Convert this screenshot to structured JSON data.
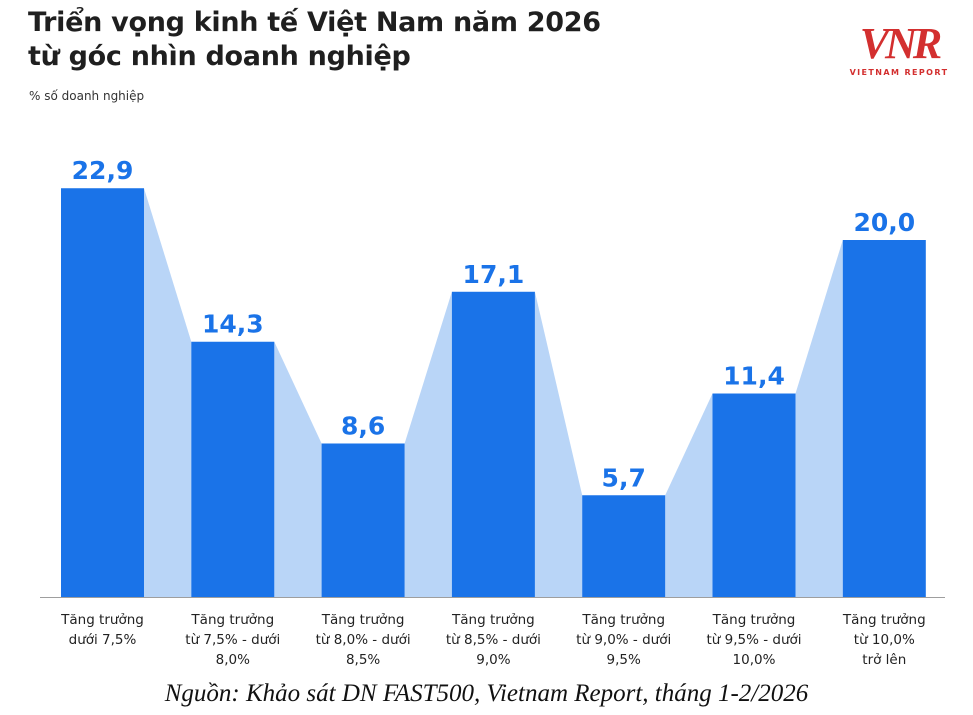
{
  "header": {
    "title_line1": "Triển vọng kinh tế Việt Nam năm 2026",
    "title_line2": "từ góc nhìn doanh nghiệp",
    "unit_label": "% số doanh nghiệp"
  },
  "logo": {
    "text": "VNR",
    "tagline": "VIETNAM REPORT",
    "color": "#d32f2f"
  },
  "chart_data": {
    "type": "bar",
    "title": "Triển vọng kinh tế Việt Nam năm 2026 từ góc nhìn doanh nghiệp",
    "ylabel": "% số doanh nghiệp",
    "xlabel": "",
    "categories": [
      [
        "Tăng trưởng",
        "dưới 7,5%"
      ],
      [
        "Tăng trưởng",
        "từ 7,5% - dưới",
        "8,0%"
      ],
      [
        "Tăng trưởng",
        "từ 8,0% - dưới",
        "8,5%"
      ],
      [
        "Tăng trưởng",
        "từ 8,5% - dưới",
        "9,0%"
      ],
      [
        "Tăng trưởng",
        "từ 9,0% - dưới",
        "9,5%"
      ],
      [
        "Tăng trưởng",
        "từ 9,5% - dưới",
        "10,0%"
      ],
      [
        "Tăng trưởng",
        "từ 10,0%",
        "trở lên"
      ]
    ],
    "values": [
      22.9,
      14.3,
      8.6,
      17.1,
      5.7,
      11.4,
      20.0
    ],
    "value_labels": [
      "22,9",
      "14,3",
      "8,6",
      "17,1",
      "5,7",
      "11,4",
      "20,0"
    ],
    "ylim": [
      0,
      25
    ],
    "grid": false,
    "colors": {
      "bar": "#1a73e8",
      "connector": "#b9d5f7",
      "value_label": "#1a73e8",
      "axis": "#9e9e9e"
    }
  },
  "source_note": "Nguồn: Khảo sát DN FAST500, Vietnam Report, tháng 1-2/2026"
}
